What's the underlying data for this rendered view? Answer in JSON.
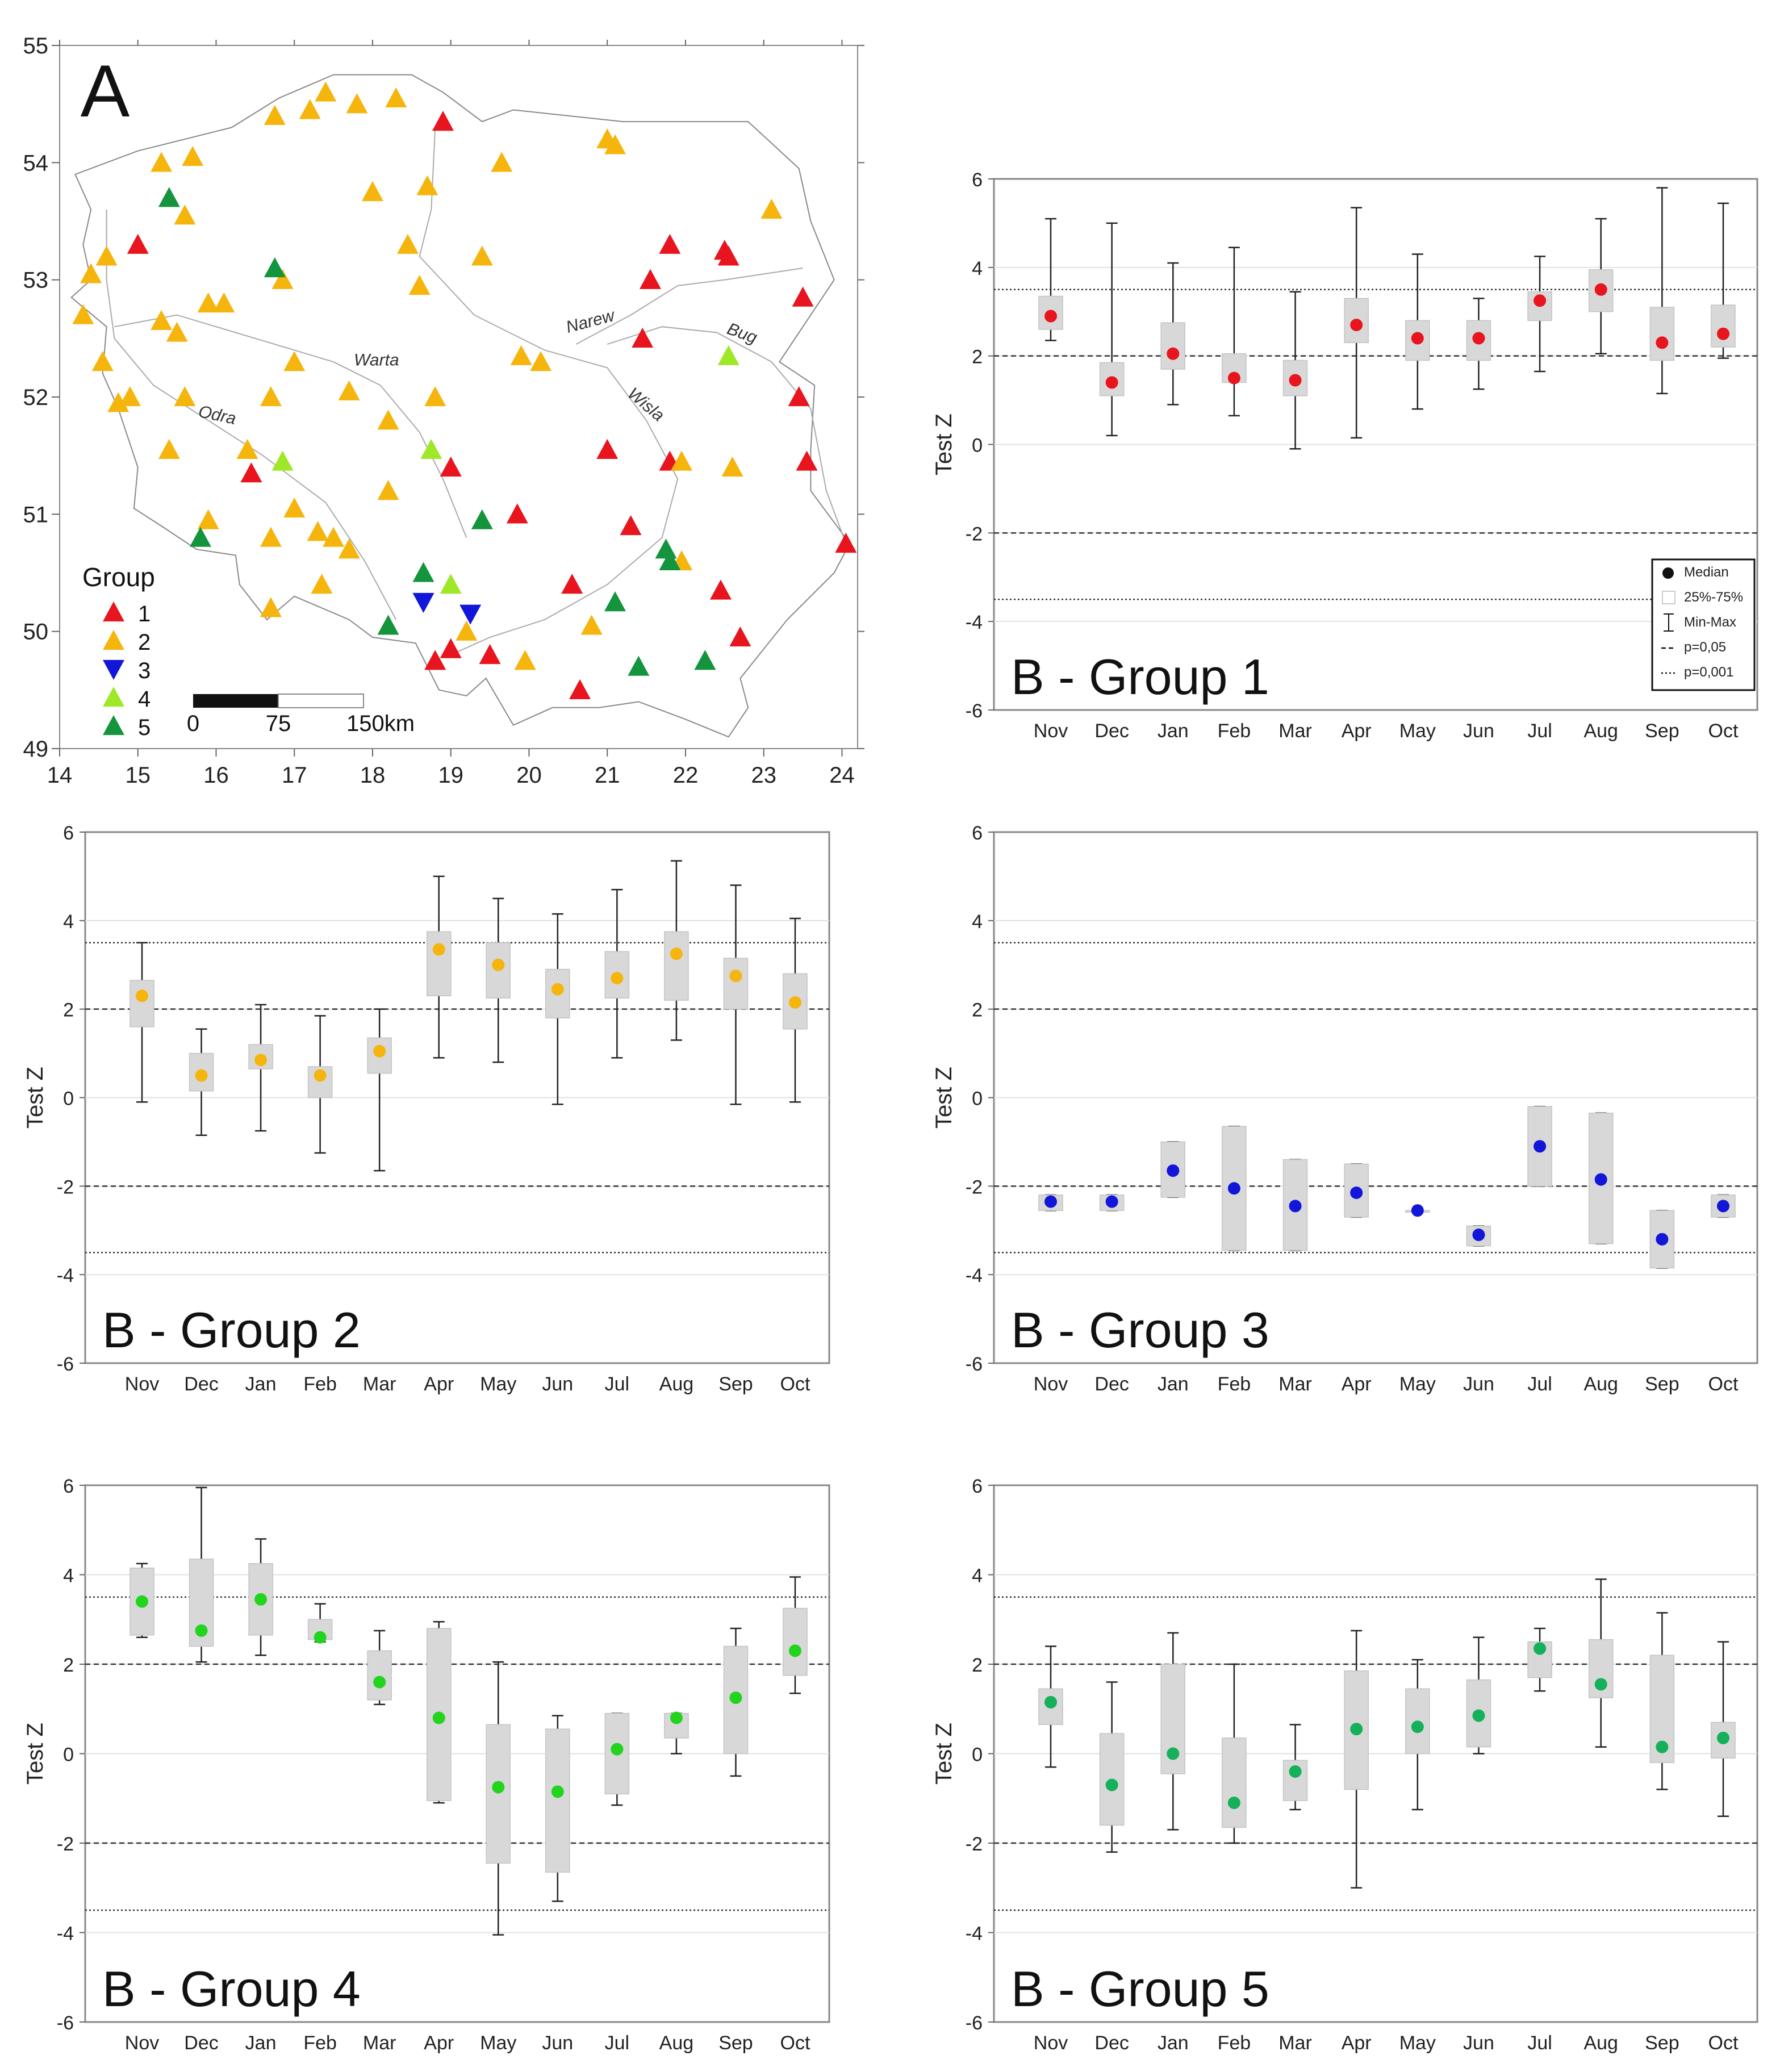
{
  "map": {
    "label": "A",
    "lon_ticks": [
      "14",
      "15",
      "16",
      "17",
      "18",
      "19",
      "20",
      "21",
      "22",
      "23",
      "24"
    ],
    "lat_ticks": [
      "49",
      "50",
      "51",
      "52",
      "53",
      "54",
      "55"
    ],
    "xlim": [
      14,
      24.2
    ],
    "ylim": [
      49,
      55
    ],
    "rivers": [
      "Warta",
      "Odra",
      "Narew",
      "Wisla",
      "Bug"
    ],
    "legend": {
      "title": "Group",
      "items": [
        {
          "label": "1",
          "color": "#e8141e",
          "shape": "triangle-up"
        },
        {
          "label": "2",
          "color": "#f5b50d",
          "shape": "triangle-up"
        },
        {
          "label": "3",
          "color": "#1216d8",
          "shape": "triangle-down"
        },
        {
          "label": "4",
          "color": "#9ee827",
          "shape": "triangle-up"
        },
        {
          "label": "5",
          "color": "#14943c",
          "shape": "triangle-up"
        }
      ]
    },
    "scale_bar": {
      "labels": [
        "0",
        "75",
        "150km"
      ]
    },
    "stations": [
      [
        18.9,
        54.35,
        1
      ],
      [
        15.0,
        53.3,
        1
      ],
      [
        21.8,
        53.3,
        1
      ],
      [
        21.55,
        53.0,
        1
      ],
      [
        22.5,
        53.25,
        1
      ],
      [
        22.55,
        53.2,
        1
      ],
      [
        23.5,
        52.85,
        1
      ],
      [
        21.45,
        52.5,
        1
      ],
      [
        23.45,
        52.0,
        1
      ],
      [
        21.0,
        51.55,
        1
      ],
      [
        21.8,
        51.45,
        1
      ],
      [
        23.55,
        51.45,
        1
      ],
      [
        19.0,
        51.4,
        1
      ],
      [
        16.45,
        51.35,
        1
      ],
      [
        19.85,
        51.0,
        1
      ],
      [
        21.3,
        50.9,
        1
      ],
      [
        24.05,
        50.75,
        1
      ],
      [
        20.55,
        50.4,
        1
      ],
      [
        22.45,
        50.35,
        1
      ],
      [
        22.7,
        49.95,
        1
      ],
      [
        18.8,
        49.75,
        1
      ],
      [
        19.0,
        49.85,
        1
      ],
      [
        19.5,
        49.8,
        1
      ],
      [
        20.65,
        49.5,
        1
      ],
      [
        16.75,
        54.4,
        2
      ],
      [
        17.2,
        54.45,
        2
      ],
      [
        17.4,
        54.6,
        2
      ],
      [
        17.8,
        54.5,
        2
      ],
      [
        18.3,
        54.55,
        2
      ],
      [
        15.3,
        54.0,
        2
      ],
      [
        15.7,
        54.05,
        2
      ],
      [
        15.6,
        53.55,
        2
      ],
      [
        18.0,
        53.75,
        2
      ],
      [
        18.7,
        53.8,
        2
      ],
      [
        19.65,
        54.0,
        2
      ],
      [
        21.0,
        54.2,
        2
      ],
      [
        21.1,
        54.15,
        2
      ],
      [
        23.1,
        53.6,
        2
      ],
      [
        14.6,
        53.2,
        2
      ],
      [
        14.4,
        53.05,
        2
      ],
      [
        18.45,
        53.3,
        2
      ],
      [
        19.4,
        53.2,
        2
      ],
      [
        16.85,
        53.0,
        2
      ],
      [
        18.6,
        52.95,
        2
      ],
      [
        14.3,
        52.7,
        2
      ],
      [
        15.9,
        52.8,
        2
      ],
      [
        16.1,
        52.8,
        2
      ],
      [
        15.3,
        52.65,
        2
      ],
      [
        15.5,
        52.55,
        2
      ],
      [
        14.55,
        52.3,
        2
      ],
      [
        17.0,
        52.3,
        2
      ],
      [
        19.9,
        52.35,
        2
      ],
      [
        20.15,
        52.3,
        2
      ],
      [
        14.75,
        51.95,
        2
      ],
      [
        14.9,
        52.0,
        2
      ],
      [
        15.6,
        52.0,
        2
      ],
      [
        16.7,
        52.0,
        2
      ],
      [
        17.7,
        52.05,
        2
      ],
      [
        18.8,
        52.0,
        2
      ],
      [
        16.4,
        51.55,
        2
      ],
      [
        15.4,
        51.55,
        2
      ],
      [
        18.2,
        51.8,
        2
      ],
      [
        21.95,
        51.45,
        2
      ],
      [
        22.6,
        51.4,
        2
      ],
      [
        18.2,
        51.2,
        2
      ],
      [
        17.0,
        51.05,
        2
      ],
      [
        15.9,
        50.95,
        2
      ],
      [
        16.7,
        50.8,
        2
      ],
      [
        17.3,
        50.85,
        2
      ],
      [
        17.5,
        50.8,
        2
      ],
      [
        17.7,
        50.7,
        2
      ],
      [
        17.35,
        50.4,
        2
      ],
      [
        16.7,
        50.2,
        2
      ],
      [
        21.95,
        50.6,
        2
      ],
      [
        19.2,
        50.0,
        2
      ],
      [
        20.8,
        50.05,
        2
      ],
      [
        19.95,
        49.75,
        2
      ],
      [
        18.65,
        50.25,
        3
      ],
      [
        19.25,
        50.15,
        3
      ],
      [
        22.55,
        52.35,
        4
      ],
      [
        16.85,
        51.45,
        4
      ],
      [
        18.75,
        51.55,
        4
      ],
      [
        19.0,
        50.4,
        4
      ],
      [
        15.4,
        53.7,
        5
      ],
      [
        16.75,
        53.1,
        5
      ],
      [
        19.4,
        50.95,
        5
      ],
      [
        15.8,
        50.8,
        5
      ],
      [
        21.75,
        50.7,
        5
      ],
      [
        21.8,
        50.6,
        5
      ],
      [
        18.65,
        50.5,
        5
      ],
      [
        21.1,
        50.25,
        5
      ],
      [
        18.2,
        50.05,
        5
      ],
      [
        21.4,
        49.7,
        5
      ],
      [
        22.25,
        49.75,
        5
      ]
    ]
  },
  "chart_data": [
    {
      "type": "boxplot",
      "title": "B - Group 1",
      "ylabel": "Test Z",
      "ylim": [
        -6,
        6
      ],
      "yticks": [
        "-6",
        "-4",
        "-2",
        "0",
        "2",
        "4",
        "6"
      ],
      "categories": [
        "Nov",
        "Dec",
        "Jan",
        "Feb",
        "Mar",
        "Apr",
        "May",
        "Jun",
        "Jul",
        "Aug",
        "Sep",
        "Oct"
      ],
      "color": "#e8141e",
      "median": [
        2.9,
        1.4,
        2.05,
        1.5,
        1.45,
        2.7,
        2.4,
        2.4,
        3.25,
        3.5,
        2.3,
        2.5
      ],
      "q1": [
        2.6,
        1.1,
        1.7,
        1.4,
        1.1,
        2.3,
        1.9,
        1.9,
        2.8,
        3.0,
        1.9,
        2.2
      ],
      "q3": [
        3.35,
        1.85,
        2.75,
        2.05,
        1.9,
        3.3,
        2.8,
        2.8,
        3.45,
        3.95,
        3.1,
        3.15
      ],
      "min": [
        2.35,
        0.2,
        0.9,
        0.65,
        -0.1,
        0.15,
        0.8,
        1.25,
        1.65,
        2.05,
        1.15,
        1.95
      ],
      "max": [
        5.1,
        5.0,
        4.1,
        4.45,
        3.45,
        5.35,
        4.3,
        3.3,
        4.25,
        5.1,
        5.8,
        5.45
      ],
      "reference_lines": [
        {
          "y": 3.5,
          "style": "dotted"
        },
        {
          "y": 2,
          "style": "dashed"
        },
        {
          "y": -2,
          "style": "dashed"
        },
        {
          "y": -3.5,
          "style": "dotted"
        }
      ],
      "legend": {
        "items": [
          "Median",
          "25%-75%",
          "Min-Max",
          "p=0,05",
          "p=0,001"
        ],
        "position": "bottom-right"
      }
    },
    {
      "type": "boxplot",
      "title": "B - Group 2",
      "ylabel": "Test Z",
      "ylim": [
        -6,
        6
      ],
      "yticks": [
        "-6",
        "-4",
        "-2",
        "0",
        "2",
        "4",
        "6"
      ],
      "categories": [
        "Nov",
        "Dec",
        "Jan",
        "Feb",
        "Mar",
        "Apr",
        "May",
        "Jun",
        "Jul",
        "Aug",
        "Sep",
        "Oct"
      ],
      "color": "#f5b50d",
      "median": [
        2.3,
        0.5,
        0.85,
        0.5,
        1.05,
        3.35,
        3.0,
        2.45,
        2.7,
        3.25,
        2.75,
        2.15
      ],
      "q1": [
        1.6,
        0.15,
        0.65,
        0.0,
        0.55,
        2.3,
        2.25,
        1.8,
        2.25,
        2.2,
        2.0,
        1.55
      ],
      "q3": [
        2.65,
        1.0,
        1.2,
        0.7,
        1.35,
        3.75,
        3.5,
        2.9,
        3.3,
        3.75,
        3.15,
        2.8
      ],
      "min": [
        -0.1,
        -0.85,
        -0.75,
        -1.25,
        -1.65,
        0.9,
        0.8,
        -0.15,
        0.9,
        1.3,
        -0.15,
        -0.1
      ],
      "max": [
        3.5,
        1.55,
        2.1,
        1.85,
        2.0,
        5.0,
        4.5,
        4.15,
        4.7,
        5.35,
        4.8,
        4.05
      ],
      "reference_lines": [
        {
          "y": 3.5,
          "style": "dotted"
        },
        {
          "y": 2,
          "style": "dashed"
        },
        {
          "y": -2,
          "style": "dashed"
        },
        {
          "y": -3.5,
          "style": "dotted"
        }
      ]
    },
    {
      "type": "boxplot",
      "title": "B - Group 3",
      "ylabel": "Test Z",
      "ylim": [
        -6,
        6
      ],
      "yticks": [
        "-6",
        "-4",
        "-2",
        "0",
        "2",
        "4",
        "6"
      ],
      "categories": [
        "Nov",
        "Dec",
        "Jan",
        "Feb",
        "Mar",
        "Apr",
        "May",
        "Jun",
        "Jul",
        "Aug",
        "Sep",
        "Oct"
      ],
      "color": "#1216d8",
      "median": [
        -2.35,
        -2.35,
        -1.65,
        -2.05,
        -2.45,
        -2.15,
        -2.55,
        -3.1,
        -1.1,
        -1.85,
        -3.2,
        -2.45
      ],
      "q1": [
        -2.55,
        -2.55,
        -2.25,
        -3.45,
        -3.45,
        -2.7,
        -2.55,
        -3.35,
        -2.0,
        -3.3,
        -3.85,
        -2.7
      ],
      "q3": [
        -2.2,
        -2.2,
        -1.0,
        -0.65,
        -1.4,
        -1.5,
        -2.55,
        -2.9,
        -0.2,
        -0.35,
        -2.55,
        -2.2
      ],
      "min": [
        -2.55,
        -2.55,
        -2.25,
        -3.45,
        -3.45,
        -2.7,
        -2.55,
        -3.35,
        -2.0,
        -3.3,
        -3.85,
        -2.7
      ],
      "max": [
        -2.2,
        -2.2,
        -1.0,
        -0.65,
        -1.4,
        -1.5,
        -2.55,
        -2.9,
        -0.2,
        -0.35,
        -2.55,
        -2.2
      ],
      "reference_lines": [
        {
          "y": 3.5,
          "style": "dotted"
        },
        {
          "y": 2,
          "style": "dashed"
        },
        {
          "y": -2,
          "style": "dashed"
        },
        {
          "y": -3.5,
          "style": "dotted"
        }
      ]
    },
    {
      "type": "boxplot",
      "title": "B - Group 4",
      "ylabel": "Test Z",
      "ylim": [
        -6,
        6
      ],
      "yticks": [
        "-6",
        "-4",
        "-2",
        "0",
        "2",
        "4",
        "6"
      ],
      "categories": [
        "Nov",
        "Dec",
        "Jan",
        "Feb",
        "Mar",
        "Apr",
        "May",
        "Jun",
        "Jul",
        "Aug",
        "Sep",
        "Oct"
      ],
      "color": "#22d41e",
      "median": [
        3.4,
        2.75,
        3.45,
        2.6,
        1.6,
        0.8,
        -0.75,
        -0.85,
        0.1,
        0.8,
        1.25,
        2.3
      ],
      "q1": [
        2.65,
        2.4,
        2.65,
        2.55,
        1.2,
        -1.05,
        -2.45,
        -2.65,
        -0.9,
        0.35,
        0.0,
        1.75
      ],
      "q3": [
        4.15,
        4.35,
        4.25,
        3.0,
        2.3,
        2.8,
        0.65,
        0.55,
        0.9,
        0.9,
        2.4,
        3.25
      ],
      "min": [
        2.6,
        2.05,
        2.2,
        2.5,
        1.1,
        -1.1,
        -4.05,
        -3.3,
        -1.15,
        0.0,
        -0.5,
        1.35
      ],
      "max": [
        4.25,
        5.95,
        4.8,
        3.35,
        2.75,
        2.95,
        2.05,
        0.85,
        0.9,
        0.9,
        2.8,
        3.95
      ],
      "reference_lines": [
        {
          "y": 3.5,
          "style": "dotted"
        },
        {
          "y": 2,
          "style": "dashed"
        },
        {
          "y": -2,
          "style": "dashed"
        },
        {
          "y": -3.5,
          "style": "dotted"
        }
      ]
    },
    {
      "type": "boxplot",
      "title": "B - Group 5",
      "ylabel": "Test Z",
      "ylim": [
        -6,
        6
      ],
      "yticks": [
        "-6",
        "-4",
        "-2",
        "0",
        "2",
        "4",
        "6"
      ],
      "categories": [
        "Nov",
        "Dec",
        "Jan",
        "Feb",
        "Mar",
        "Apr",
        "May",
        "Jun",
        "Jul",
        "Aug",
        "Sep",
        "Oct"
      ],
      "color": "#14b05a",
      "median": [
        1.15,
        -0.7,
        0.0,
        -1.1,
        -0.4,
        0.55,
        0.6,
        0.85,
        2.35,
        1.55,
        0.15,
        0.35
      ],
      "q1": [
        0.65,
        -1.6,
        -0.45,
        -1.65,
        -1.05,
        -0.8,
        0.0,
        0.15,
        1.7,
        1.25,
        -0.2,
        -0.1
      ],
      "q3": [
        1.45,
        0.45,
        2.0,
        0.35,
        -0.15,
        1.85,
        1.45,
        1.65,
        2.5,
        2.55,
        2.2,
        0.7
      ],
      "min": [
        -0.3,
        -2.2,
        -1.7,
        -2.0,
        -1.25,
        -3.0,
        -1.25,
        0.0,
        1.4,
        0.15,
        -0.8,
        -1.4
      ],
      "max": [
        2.4,
        1.6,
        2.7,
        2.0,
        0.65,
        2.75,
        2.1,
        2.6,
        2.8,
        3.9,
        3.15,
        2.5
      ],
      "reference_lines": [
        {
          "y": 3.5,
          "style": "dotted"
        },
        {
          "y": 2,
          "style": "dashed"
        },
        {
          "y": -2,
          "style": "dashed"
        },
        {
          "y": -3.5,
          "style": "dotted"
        }
      ]
    }
  ]
}
